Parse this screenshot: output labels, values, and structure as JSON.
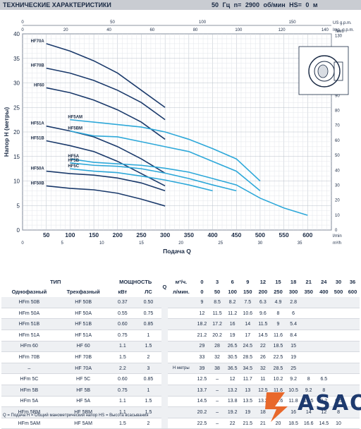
{
  "header": {
    "title": "ТЕХНИЧЕСКИЕ ХАРАКТЕРИСТИКИ",
    "freq": "50 Гц",
    "rpm": "n= 2900 об/мин",
    "hs": "HS= 0 м"
  },
  "chart_data": {
    "type": "line",
    "ylabel": "Напор H (метры)",
    "xlabel": "Подача Q",
    "x_unit": "l/min",
    "x_unit2": "m³/h",
    "us_unit": "US g.p.m.",
    "imp_unit": "Imp. g.p.m.",
    "feet_unit": "feet",
    "xlim": [
      0,
      650
    ],
    "ylim": [
      0,
      40
    ],
    "xticks": [
      50,
      100,
      150,
      200,
      250,
      300,
      350,
      400,
      450,
      500,
      550,
      600
    ],
    "yticks": [
      0,
      5,
      10,
      15,
      20,
      25,
      30,
      35,
      40
    ],
    "m3h_ticks": [
      0,
      5,
      10,
      15,
      20,
      25,
      30,
      35
    ],
    "us_ticks": [
      0,
      50,
      100,
      150
    ],
    "imp_ticks": [
      0,
      20,
      40,
      60,
      80,
      100,
      120,
      140
    ],
    "feet_ticks": [
      0,
      10,
      20,
      30,
      40,
      50,
      60,
      70,
      80,
      90,
      100,
      110,
      120,
      130
    ],
    "colors": {
      "dark": "#1b3a6b",
      "light": "#2ea8d9"
    },
    "series": [
      {
        "name": "HF70A",
        "color": "dark",
        "x": [
          50,
          100,
          150,
          200,
          250,
          300
        ],
        "y": [
          38,
          36.5,
          34.5,
          32,
          28.5,
          25
        ]
      },
      {
        "name": "HF70B",
        "color": "dark",
        "x": [
          50,
          100,
          150,
          200,
          250,
          300
        ],
        "y": [
          33,
          32,
          30.5,
          28.5,
          26,
          22.5
        ]
      },
      {
        "name": "HF60",
        "color": "dark",
        "x": [
          50,
          100,
          150,
          200,
          250,
          300
        ],
        "y": [
          29,
          28,
          26.5,
          24.5,
          22,
          18.5
        ]
      },
      {
        "name": "HF51A",
        "color": "dark",
        "x": [
          50,
          100,
          150,
          200,
          250,
          300
        ],
        "y": [
          21.2,
          20.2,
          19,
          17,
          14.5,
          11.6
        ]
      },
      {
        "name": "HF51B",
        "color": "dark",
        "x": [
          50,
          100,
          150,
          200,
          250,
          300
        ],
        "y": [
          18.2,
          17.2,
          16,
          14,
          11.5,
          9
        ]
      },
      {
        "name": "HF50A",
        "color": "dark",
        "x": [
          50,
          100,
          150,
          200,
          250,
          300
        ],
        "y": [
          12,
          11.5,
          11.2,
          10.6,
          9.6,
          8
        ]
      },
      {
        "name": "HF50B",
        "color": "dark",
        "x": [
          50,
          100,
          150,
          200,
          250,
          300
        ],
        "y": [
          9,
          8.5,
          8.2,
          7.5,
          6.3,
          4.9
        ]
      },
      {
        "name": "HF5AM",
        "color": "light",
        "x": [
          100,
          150,
          200,
          250,
          300,
          350,
          400,
          450,
          500
        ],
        "y": [
          22.5,
          22,
          21.5,
          21,
          20,
          18.5,
          16.6,
          14.5,
          10
        ]
      },
      {
        "name": "HF5BM",
        "color": "light",
        "x": [
          100,
          150,
          200,
          250,
          300,
          350,
          400,
          450,
          500
        ],
        "y": [
          20.2,
          19.2,
          19,
          18,
          17,
          16,
          14,
          12,
          8
        ]
      },
      {
        "name": "HF5A",
        "color": "light",
        "x": [
          100,
          150,
          200,
          250,
          300,
          350,
          400,
          450,
          500,
          550,
          600
        ],
        "y": [
          14.5,
          13.8,
          13.5,
          13.2,
          12.6,
          11.8,
          10.5,
          9.2,
          6.5,
          4.5,
          3
        ]
      },
      {
        "name": "HF5B",
        "color": "light",
        "x": [
          100,
          150,
          200,
          250,
          300,
          350,
          400,
          450
        ],
        "y": [
          13.7,
          13.2,
          13,
          12.5,
          11.6,
          10.5,
          9.2,
          8
        ]
      },
      {
        "name": "HF5C",
        "color": "light",
        "x": [
          100,
          150,
          200,
          250,
          300,
          350,
          400
        ],
        "y": [
          12.5,
          12,
          11.7,
          11,
          10.2,
          9.2,
          8
        ]
      }
    ]
  },
  "table": {
    "title_type": "ТИП",
    "title_power": "МОЩНОСТЬ",
    "q_letter": "Q",
    "h_letter": "H",
    "h_unit": "метры",
    "col_single": "Однофазный",
    "col_three": "Трехфазный",
    "col_kw": "кВт",
    "col_hp": "ЛС",
    "unit_m3h": "м³/ч.",
    "unit_lmin": "л/мин.",
    "q_m3h": [
      "0",
      "3",
      "6",
      "9",
      "12",
      "15",
      "18",
      "21",
      "24",
      "30",
      "36"
    ],
    "q_lmin": [
      "0",
      "50",
      "100",
      "150",
      "200",
      "250",
      "300",
      "350",
      "400",
      "500",
      "600"
    ],
    "rows": [
      {
        "single": "HFm 50B",
        "three": "HF 50B",
        "kw": "0.37",
        "hp": "0.50",
        "h": [
          "9",
          "8.5",
          "8.2",
          "7.5",
          "6.3",
          "4.9",
          "2.8",
          "",
          "",
          "",
          ""
        ]
      },
      {
        "single": "HFm 50A",
        "three": "HF 50A",
        "kw": "0.55",
        "hp": "0.75",
        "h": [
          "12",
          "11.5",
          "11.2",
          "10.6",
          "9.6",
          "8",
          "6",
          "",
          "",
          "",
          ""
        ]
      },
      {
        "single": "HFm 51B",
        "three": "HF 51B",
        "kw": "0.60",
        "hp": "0.85",
        "h": [
          "18.2",
          "17.2",
          "16",
          "14",
          "11.5",
          "9",
          "5.4",
          "",
          "",
          "",
          ""
        ]
      },
      {
        "single": "HFm 51A",
        "three": "HF 51A",
        "kw": "0.75",
        "hp": "1",
        "h": [
          "21.2",
          "20.2",
          "19",
          "17",
          "14.5",
          "11.6",
          "8.4",
          "",
          "",
          "",
          ""
        ]
      },
      {
        "single": "HFm 60",
        "three": "HF 60",
        "kw": "1.1",
        "hp": "1.5",
        "h": [
          "29",
          "28",
          "26.5",
          "24.5",
          "22",
          "18.5",
          "15",
          "",
          "",
          "",
          ""
        ]
      },
      {
        "single": "HFm 70B",
        "three": "HF 70B",
        "kw": "1.5",
        "hp": "2",
        "h": [
          "33",
          "32",
          "30.5",
          "28.5",
          "26",
          "22.5",
          "19",
          "",
          "",
          "",
          ""
        ]
      },
      {
        "single": "–",
        "three": "HF 70A",
        "kw": "2.2",
        "hp": "3",
        "h": [
          "39",
          "38",
          "36.5",
          "34.5",
          "32",
          "28.5",
          "25",
          "",
          "",
          "",
          ""
        ]
      },
      {
        "single": "HFm 5C",
        "three": "HF 5C",
        "kw": "0.60",
        "hp": "0.85",
        "h": [
          "12.5",
          "–",
          "12",
          "11.7",
          "11",
          "10.2",
          "9.2",
          "8",
          "6.5",
          "",
          ""
        ]
      },
      {
        "single": "HFm 5B",
        "three": "HF 5B",
        "kw": "0.75",
        "hp": "1",
        "h": [
          "13.7",
          "–",
          "13.2",
          "13",
          "12.5",
          "11.6",
          "10.5",
          "9.2",
          "8",
          "",
          ""
        ]
      },
      {
        "single": "HFm 5A",
        "three": "HF 5A",
        "kw": "1.1",
        "hp": "1.5",
        "h": [
          "14.5",
          "–",
          "13.8",
          "13.5",
          "13.2",
          "12.6",
          "11.8",
          "10.5",
          "9.2",
          "6.5",
          "3"
        ]
      },
      {
        "single": "HFm 5BM",
        "three": "HF 5BM",
        "kw": "1.1",
        "hp": "1.5",
        "h": [
          "20.2",
          "–",
          "19.2",
          "19",
          "18",
          "17",
          "16",
          "14",
          "12",
          "8",
          ""
        ]
      },
      {
        "single": "HFm 5AM",
        "three": "HF 5AM",
        "kw": "1.5",
        "hp": "2",
        "h": [
          "22.5",
          "–",
          "22",
          "21.5",
          "21",
          "20",
          "18.5",
          "16.6",
          "14.5",
          "10",
          ""
        ]
      }
    ]
  },
  "footer": "Q = Подача  H = Общий манометрический напор  HS = Высота всасывания",
  "logo": "ASAO"
}
